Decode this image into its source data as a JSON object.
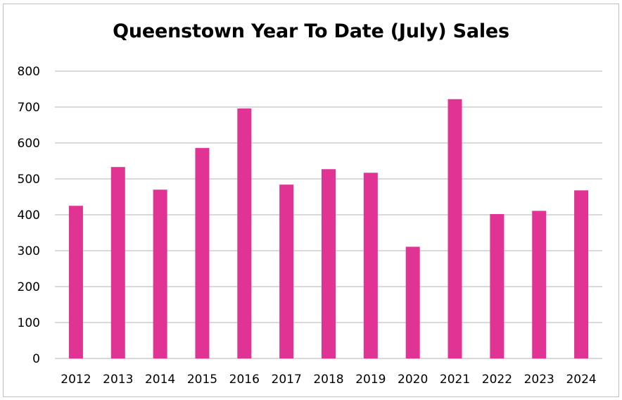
{
  "chart_data": {
    "type": "bar",
    "title": "Queenstown Year To Date (July) Sales",
    "xlabel": "",
    "ylabel": "",
    "categories": [
      "2012",
      "2013",
      "2014",
      "2015",
      "2016",
      "2017",
      "2018",
      "2019",
      "2020",
      "2021",
      "2022",
      "2023",
      "2024"
    ],
    "series": [
      {
        "name": "Sales",
        "values": [
          425,
          533,
          470,
          586,
          696,
          484,
          527,
          517,
          311,
          722,
          402,
          411,
          468
        ]
      }
    ],
    "ylim": [
      0,
      800
    ],
    "yticks": [
      "0",
      "100",
      "200",
      "300",
      "400",
      "500",
      "600",
      "700",
      "800"
    ],
    "grid": true,
    "legend": "none",
    "colors": {
      "bar": "#e03394",
      "grid": "#d9d9d9",
      "frame": "#bfbfbf"
    }
  }
}
